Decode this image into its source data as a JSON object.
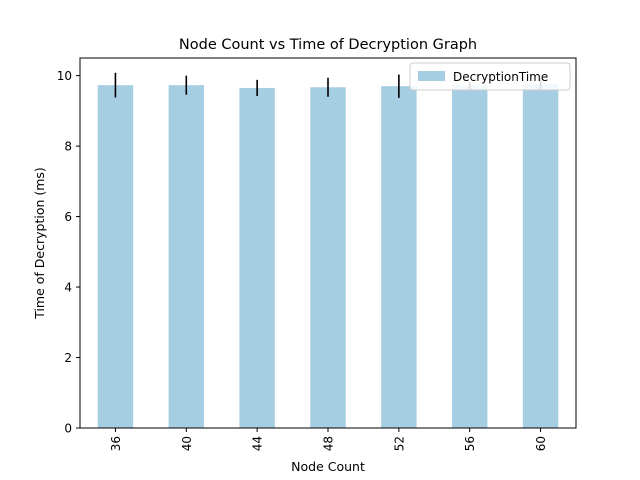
{
  "chart_data": {
    "type": "bar",
    "title": "Node Count vs Time of Decryption Graph",
    "xlabel": "Node Count",
    "ylabel": "Time of Decryption (ms)",
    "categories": [
      "36",
      "40",
      "44",
      "48",
      "52",
      "56",
      "60"
    ],
    "series": [
      {
        "name": "DecryptionTime",
        "values": [
          9.73,
          9.73,
          9.65,
          9.67,
          9.7,
          9.72,
          9.75
        ],
        "errors": [
          0.35,
          0.27,
          0.23,
          0.27,
          0.33,
          0.1,
          0.17
        ],
        "color": "#a6cee3"
      }
    ],
    "ylim": [
      0,
      10.5
    ],
    "yticks": [
      0,
      2,
      4,
      6,
      8,
      10
    ],
    "grid": false,
    "legend": "top-right",
    "error_bar_color": "#000000"
  }
}
